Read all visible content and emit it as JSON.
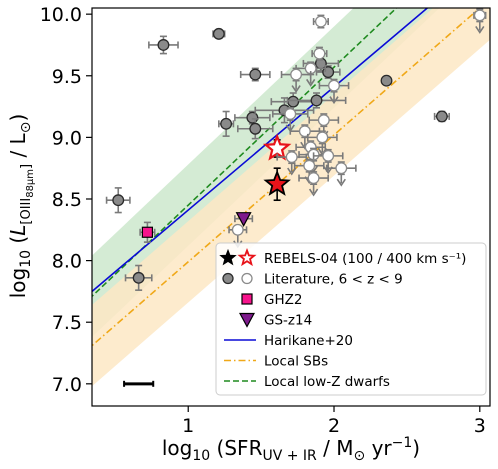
{
  "chart_data": {
    "type": "scatter",
    "title": "",
    "xlabel": "log₁₀ (SFR_UV+IR / M⊙ yr⁻¹)",
    "ylabel": "log₁₀ (L_[OIII 88μm] / L⊙)",
    "xlim": [
      0.34,
      3.07
    ],
    "ylim": [
      6.82,
      10.05
    ],
    "xticks": [
      "1",
      "2",
      "3"
    ],
    "yticks": [
      "7.0",
      "7.5",
      "8.0",
      "8.5",
      "9.0",
      "9.5",
      "10.0"
    ],
    "xtick_values": [
      1,
      2,
      3
    ],
    "ytick_values": [
      7.0,
      7.5,
      8.0,
      8.5,
      9.0,
      9.5,
      10.0
    ],
    "legend_position": "lower right",
    "legend": [
      {
        "label": "REBELS-04 (100 / 400 km s⁻¹)",
        "kind": "star-pair"
      },
      {
        "label": "Literature, 6 < z < 9",
        "kind": "circle-pair"
      },
      {
        "label": "GHZ2",
        "kind": "square"
      },
      {
        "label": "GS-z14",
        "kind": "triangle"
      },
      {
        "label": "Harikane+20",
        "kind": "solid-line"
      },
      {
        "label": "Local SBs",
        "kind": "dashdot-line"
      },
      {
        "label": "Local low-Z dwarfs",
        "kind": "dashed-line"
      }
    ],
    "colors": {
      "harikane": "#0a0ad6",
      "local_sbs_line": "#f0a818",
      "local_sbs_band": "#fde7c4",
      "dwarfs_line": "#1f8a1f",
      "dwarfs_band": "#cde7cd",
      "rebels_fill": "#e8131a",
      "ghz2_fill": "#f7148c",
      "gsz14_fill": "#7e1a8c",
      "literature_filled": "#8a8a8a",
      "error_bar": "#7a7a7a"
    },
    "relations": {
      "harikane": {
        "slope": 1.0,
        "intercept": 7.41
      },
      "local_low_z_dwarfs": {
        "slope": 1.12,
        "intercept": 7.33,
        "band_halfwidth": 0.33
      },
      "local_sbs": {
        "slope": 1.03,
        "intercept": 6.96,
        "band_halfwidth": 0.33
      }
    },
    "series": [
      {
        "name": "REBELS-04 (100 / 400 km s⁻¹)",
        "points": [
          {
            "x": 1.61,
            "y": 8.62,
            "xerr": 0.05,
            "yerr": 0.13,
            "variant": "filled",
            "upper_limit": false
          },
          {
            "x": 1.61,
            "y": 8.91,
            "xerr": 0.05,
            "yerr": 0.07,
            "variant": "open",
            "upper_limit": false
          }
        ]
      },
      {
        "name": "Literature, 6 < z < 9",
        "points": [
          {
            "x": 0.52,
            "y": 8.49,
            "xerr": 0.08,
            "yerr": 0.1,
            "variant": "filled",
            "upper_limit": false
          },
          {
            "x": 0.66,
            "y": 7.86,
            "xerr": 0.09,
            "yerr": 0.1,
            "variant": "filled",
            "upper_limit": false
          },
          {
            "x": 0.83,
            "y": 9.75,
            "xerr": 0.1,
            "yerr": 0.07,
            "variant": "filled",
            "upper_limit": false
          },
          {
            "x": 1.21,
            "y": 9.84,
            "xerr": 0.04,
            "yerr": 0.0,
            "variant": "filled",
            "upper_limit": false
          },
          {
            "x": 1.26,
            "y": 9.11,
            "xerr": 0.05,
            "yerr": 0.1,
            "variant": "filled",
            "upper_limit": false
          },
          {
            "x": 1.46,
            "y": 9.51,
            "xerr": 0.1,
            "yerr": 0.05,
            "variant": "filled",
            "upper_limit": false
          },
          {
            "x": 1.44,
            "y": 9.16,
            "xerr": 0.12,
            "yerr": 0.05,
            "variant": "filled",
            "upper_limit": false
          },
          {
            "x": 1.46,
            "y": 9.07,
            "xerr": 0.12,
            "yerr": 0.08,
            "variant": "filled",
            "upper_limit": false
          },
          {
            "x": 1.66,
            "y": 9.22,
            "xerr": 0.2,
            "yerr": 0.1,
            "variant": "filled",
            "upper_limit": false
          },
          {
            "x": 1.72,
            "y": 9.29,
            "xerr": 0.15,
            "yerr": 0.07,
            "variant": "filled",
            "upper_limit": false
          },
          {
            "x": 1.88,
            "y": 9.3,
            "xerr": 0.2,
            "yerr": 0.06,
            "variant": "filled",
            "upper_limit": false
          },
          {
            "x": 1.91,
            "y": 9.6,
            "xerr": 0.12,
            "yerr": 0.06,
            "variant": "filled",
            "upper_limit": false
          },
          {
            "x": 1.96,
            "y": 9.53,
            "xerr": 0.08,
            "yerr": 0.05,
            "variant": "filled",
            "upper_limit": false
          },
          {
            "x": 2.36,
            "y": 9.46,
            "xerr": 0.0,
            "yerr": 0.0,
            "variant": "filled",
            "upper_limit": false
          },
          {
            "x": 2.74,
            "y": 9.17,
            "xerr": 0.05,
            "yerr": 0.04,
            "variant": "filled",
            "upper_limit": false
          },
          {
            "x": 1.91,
            "y": 9.94,
            "xerr": 0.05,
            "yerr": 0.05,
            "variant": "open",
            "upper_limit": false
          },
          {
            "x": 3.0,
            "y": 9.99,
            "xerr": 0.04,
            "yerr": 0.05,
            "variant": "open",
            "upper_limit": true
          },
          {
            "x": 1.9,
            "y": 9.68,
            "xerr": 0.05,
            "yerr": 0.05,
            "variant": "open",
            "upper_limit": false
          },
          {
            "x": 1.84,
            "y": 9.56,
            "xerr": 0.1,
            "yerr": 0.05,
            "variant": "open",
            "upper_limit": true
          },
          {
            "x": 1.74,
            "y": 9.51,
            "xerr": 0.1,
            "yerr": 0.05,
            "variant": "open",
            "upper_limit": true
          },
          {
            "x": 2.0,
            "y": 9.42,
            "xerr": 0.1,
            "yerr": 0.05,
            "variant": "open",
            "upper_limit": true
          },
          {
            "x": 1.7,
            "y": 9.19,
            "xerr": 0.12,
            "yerr": 0.05,
            "variant": "open",
            "upper_limit": true
          },
          {
            "x": 1.93,
            "y": 9.14,
            "xerr": 0.1,
            "yerr": 0.05,
            "variant": "open",
            "upper_limit": true
          },
          {
            "x": 1.8,
            "y": 9.05,
            "xerr": 0.1,
            "yerr": 0.05,
            "variant": "open",
            "upper_limit": true
          },
          {
            "x": 1.92,
            "y": 9.0,
            "xerr": 0.1,
            "yerr": 0.05,
            "variant": "open",
            "upper_limit": true
          },
          {
            "x": 1.84,
            "y": 8.92,
            "xerr": 0.1,
            "yerr": 0.05,
            "variant": "open",
            "upper_limit": true
          },
          {
            "x": 1.71,
            "y": 8.84,
            "xerr": 0.1,
            "yerr": 0.05,
            "variant": "open",
            "upper_limit": true
          },
          {
            "x": 1.86,
            "y": 8.86,
            "xerr": 0.1,
            "yerr": 0.05,
            "variant": "open",
            "upper_limit": true
          },
          {
            "x": 1.96,
            "y": 8.85,
            "xerr": 0.1,
            "yerr": 0.05,
            "variant": "open",
            "upper_limit": true
          },
          {
            "x": 1.83,
            "y": 8.77,
            "xerr": 0.1,
            "yerr": 0.05,
            "variant": "open",
            "upper_limit": true
          },
          {
            "x": 2.05,
            "y": 8.75,
            "xerr": 0.1,
            "yerr": 0.05,
            "variant": "open",
            "upper_limit": true
          },
          {
            "x": 1.86,
            "y": 8.67,
            "xerr": 0.1,
            "yerr": 0.05,
            "variant": "open",
            "upper_limit": true
          },
          {
            "x": 1.34,
            "y": 8.25,
            "xerr": 0.06,
            "yerr": 0.0,
            "variant": "open",
            "upper_limit": true
          }
        ]
      },
      {
        "name": "GHZ2",
        "points": [
          {
            "x": 0.72,
            "y": 8.23,
            "xerr": 0.05,
            "yerr": 0.08,
            "variant": "square",
            "upper_limit": false
          }
        ]
      },
      {
        "name": "GS-z14",
        "points": [
          {
            "x": 1.38,
            "y": 8.34,
            "xerr": 0.06,
            "yerr": 0.0,
            "variant": "triangle",
            "upper_limit": false
          }
        ]
      }
    ],
    "scale_bar": {
      "x_start": 0.56,
      "x_end": 0.76,
      "y": 7.0
    }
  }
}
